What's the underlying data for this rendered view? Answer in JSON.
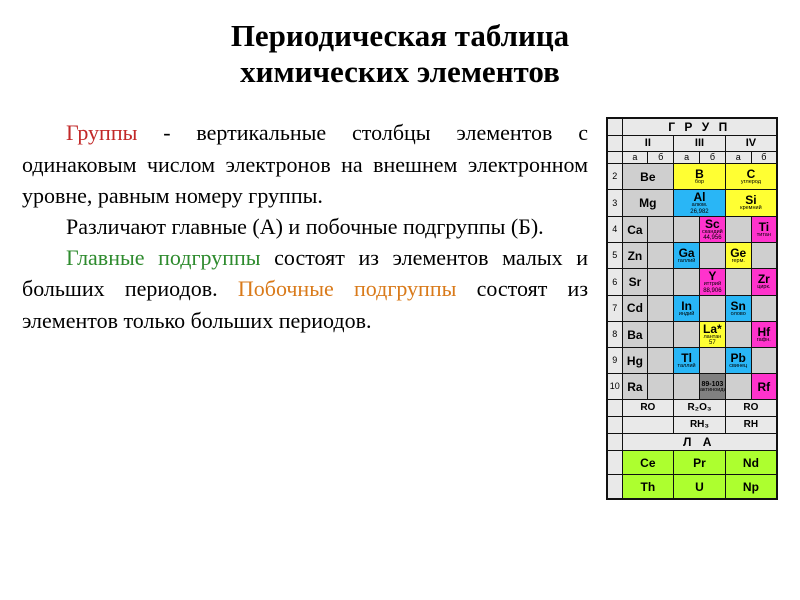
{
  "title_line1": "Периодическая таблица",
  "title_line2": "химических элементов",
  "paragraphs": {
    "p1_span1": "Группы",
    "p1_rest": " - вертикальные столбцы элементов с одинаковым числом электронов на внешнем электронном уровне, равным номеру группы.",
    "p2": "Различают главные (А) и побочные подгруппы (Б).",
    "p3_span1": "Главные подгруппы",
    "p3_rest": " состоят из элементов малых и больших периодов.",
    "p3_span2": "Побочные подгруппы",
    "p3_rest2": " состоят из элементов только больших периодов."
  },
  "colors": {
    "red": "#c22929",
    "green": "#2e8b2e",
    "orange": "#d97a1a",
    "pink": "#ff33cc",
    "yellow": "#ffff33",
    "cyan": "#29b6f6",
    "grey": "#cfcfcf",
    "lime": "#adff2f",
    "darkgrey": "#808080",
    "header_bg": "#e9e9e9"
  },
  "table": {
    "group_header": "Г Р У П",
    "roman": [
      "II",
      "III",
      "IV"
    ],
    "sub_labels": [
      "а",
      "б",
      "а",
      "б",
      "а",
      "б"
    ],
    "rows": [
      [
        {
          "sym": "Be",
          "name": "",
          "num": "",
          "bg": "grey",
          "span": 2
        },
        {
          "sym": "B",
          "name": "бор",
          "num": "",
          "bg": "yellow",
          "span": 2
        },
        {
          "sym": "C",
          "name": "углерод",
          "num": "",
          "bg": "yellow",
          "span": 2
        }
      ],
      [
        {
          "sym": "Mg",
          "name": "",
          "num": "",
          "bg": "grey",
          "span": 2
        },
        {
          "sym": "Al",
          "name": "алюм.",
          "num": "26,982",
          "bg": "cyan",
          "span": 2
        },
        {
          "sym": "Si",
          "name": "кремний",
          "num": "",
          "bg": "yellow",
          "span": 2
        }
      ],
      [
        {
          "sym": "Ca",
          "name": "",
          "num": "",
          "bg": "grey"
        },
        {
          "sym": "",
          "name": "",
          "num": "",
          "bg": "grey"
        },
        {
          "sym": "",
          "name": "",
          "num": "",
          "bg": "grey"
        },
        {
          "sym": "Sc",
          "name": "скандий",
          "num": "44,956",
          "bg": "pink"
        },
        {
          "sym": "",
          "name": "",
          "num": "",
          "bg": "grey"
        },
        {
          "sym": "Ti",
          "name": "титан",
          "num": "",
          "bg": "pink"
        }
      ],
      [
        {
          "sym": "Zn",
          "name": "",
          "num": "",
          "bg": "grey"
        },
        {
          "sym": "",
          "name": "",
          "num": "",
          "bg": "grey"
        },
        {
          "sym": "Ga",
          "name": "галлий",
          "num": "",
          "bg": "cyan"
        },
        {
          "sym": "",
          "name": "",
          "num": "",
          "bg": "grey"
        },
        {
          "sym": "Ge",
          "name": "герм.",
          "num": "",
          "bg": "yellow"
        },
        {
          "sym": "",
          "name": "",
          "num": "",
          "bg": "grey"
        }
      ],
      [
        {
          "sym": "Sr",
          "name": "",
          "num": "",
          "bg": "grey"
        },
        {
          "sym": "",
          "name": "",
          "num": "",
          "bg": "grey"
        },
        {
          "sym": "",
          "name": "",
          "num": "",
          "bg": "grey"
        },
        {
          "sym": "Y",
          "name": "иттрий",
          "num": "88,906",
          "bg": "pink"
        },
        {
          "sym": "",
          "name": "",
          "num": "",
          "bg": "grey"
        },
        {
          "sym": "Zr",
          "name": "цирк.",
          "num": "",
          "bg": "pink"
        }
      ],
      [
        {
          "sym": "Cd",
          "name": "",
          "num": "",
          "bg": "grey"
        },
        {
          "sym": "",
          "name": "",
          "num": "",
          "bg": "grey"
        },
        {
          "sym": "In",
          "name": "индий",
          "num": "",
          "bg": "cyan"
        },
        {
          "sym": "",
          "name": "",
          "num": "",
          "bg": "grey"
        },
        {
          "sym": "Sn",
          "name": "олово",
          "num": "",
          "bg": "cyan"
        },
        {
          "sym": "",
          "name": "",
          "num": "",
          "bg": "grey"
        }
      ],
      [
        {
          "sym": "Ba",
          "name": "",
          "num": "",
          "bg": "grey"
        },
        {
          "sym": "",
          "name": "",
          "num": "",
          "bg": "grey"
        },
        {
          "sym": "",
          "name": "",
          "num": "",
          "bg": "grey"
        },
        {
          "sym": "La*",
          "name": "лантан",
          "num": "57",
          "bg": "yellow"
        },
        {
          "sym": "",
          "name": "",
          "num": "",
          "bg": "grey"
        },
        {
          "sym": "Hf",
          "name": "гафн.",
          "num": "",
          "bg": "pink"
        }
      ],
      [
        {
          "sym": "Hg",
          "name": "",
          "num": "",
          "bg": "grey"
        },
        {
          "sym": "",
          "name": "",
          "num": "",
          "bg": "grey"
        },
        {
          "sym": "Tl",
          "name": "таллий",
          "num": "",
          "bg": "cyan"
        },
        {
          "sym": "",
          "name": "",
          "num": "",
          "bg": "grey"
        },
        {
          "sym": "Pb",
          "name": "свинец",
          "num": "",
          "bg": "cyan"
        },
        {
          "sym": "",
          "name": "",
          "num": "",
          "bg": "grey"
        }
      ],
      [
        {
          "sym": "Ra",
          "name": "",
          "num": "",
          "bg": "grey"
        },
        {
          "sym": "",
          "name": "",
          "num": "",
          "bg": "grey"
        },
        {
          "sym": "",
          "name": "",
          "num": "",
          "bg": "grey",
          "span": 1
        },
        {
          "sym": "89-103",
          "name": "актиноиды",
          "num": "",
          "bg": "darkgrey",
          "span": 1,
          "small": true
        },
        {
          "sym": "",
          "name": "",
          "num": "",
          "bg": "grey"
        },
        {
          "sym": "Rf",
          "name": "",
          "num": "",
          "bg": "pink"
        }
      ]
    ],
    "formula_rows": [
      [
        "RO",
        "R₂O₃",
        "RO"
      ],
      [
        "",
        "RH₃",
        "RH"
      ]
    ],
    "la_label": "Л А",
    "lanthanoids": [
      {
        "sym": "Ce",
        "bg": "lime"
      },
      {
        "sym": "Pr",
        "bg": "lime"
      },
      {
        "sym": "Nd",
        "bg": "lime"
      }
    ],
    "actinoids": [
      {
        "sym": "Th",
        "bg": "lime"
      },
      {
        "sym": "U",
        "bg": "lime"
      },
      {
        "sym": "Np",
        "bg": "lime"
      }
    ]
  }
}
